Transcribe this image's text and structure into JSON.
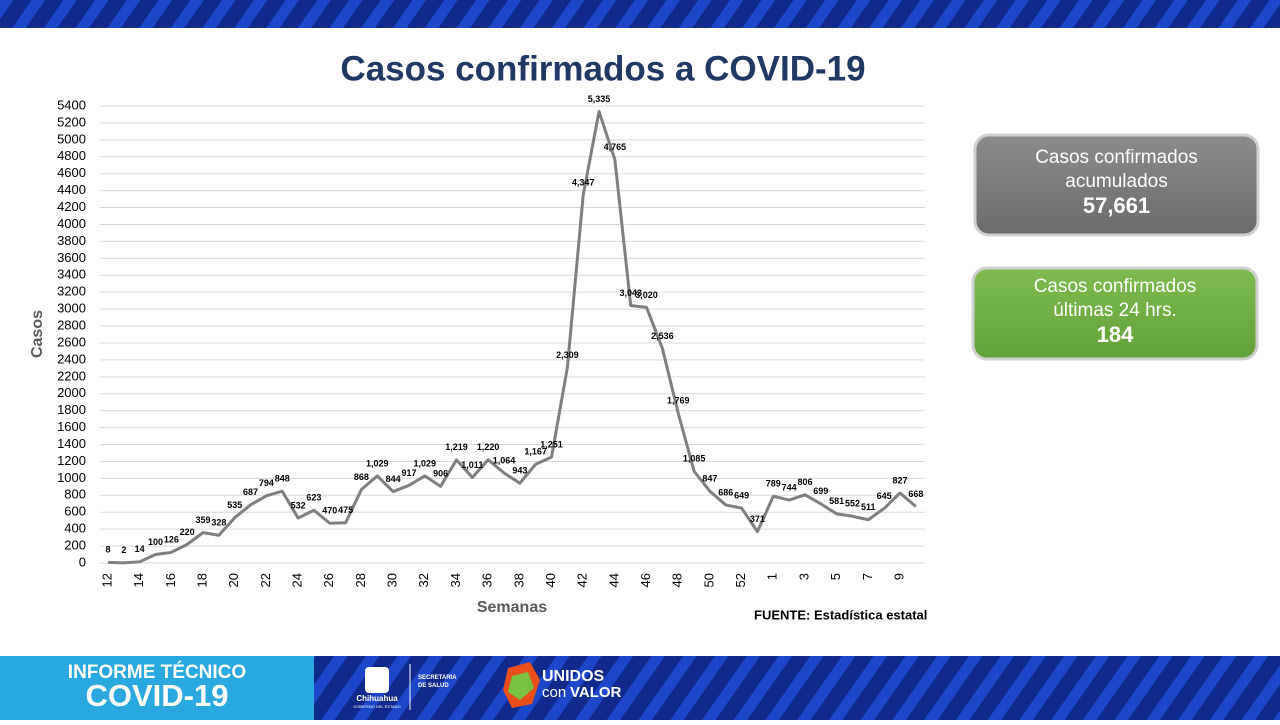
{
  "chart_data": {
    "type": "line",
    "title": "Casos confirmados a COVID-19",
    "x_label": "Semanas",
    "y_label": "Casos",
    "source": "FUENTE: Estadística estatal",
    "categories": [
      "12",
      null,
      "14",
      null,
      "16",
      null,
      "18",
      null,
      "20",
      null,
      "22",
      null,
      "24",
      null,
      "26",
      null,
      "28",
      null,
      "30",
      null,
      "32",
      null,
      "34",
      null,
      "36",
      null,
      "38",
      null,
      "40",
      null,
      "42",
      null,
      "44",
      null,
      "46",
      null,
      "48",
      null,
      "50",
      null,
      "52",
      null,
      "1",
      null,
      "3",
      null,
      "5",
      null,
      "7",
      null,
      "9",
      null
    ],
    "values": [
      8,
      2,
      14,
      100,
      126,
      220,
      359,
      328,
      535,
      687,
      794,
      848,
      532,
      623,
      470,
      475,
      868,
      1029,
      844,
      917,
      1029,
      906,
      1219,
      1011,
      1220,
      1064,
      943,
      1167,
      1251,
      2309,
      4347,
      5335,
      4765,
      3043,
      3020,
      2536,
      1769,
      1085,
      847,
      686,
      649,
      371,
      789,
      744,
      806,
      699,
      581,
      552,
      511,
      645,
      827,
      668
    ],
    "value_labels": [
      "8",
      "2",
      "14",
      "100",
      "126",
      "220",
      "359",
      "328",
      "535",
      "687",
      "794",
      "848",
      "532",
      "623",
      "470",
      "475",
      "868",
      "1,029",
      "844",
      "917",
      "1,029",
      "906",
      "1,219",
      "1,011",
      "1,220",
      "1,064",
      "943",
      "1,167",
      "1,251",
      "2,309",
      "4,347",
      "5,335",
      "4,765",
      "3,043",
      "3,020",
      "2,536",
      "1,769",
      "1,085",
      "847",
      "686",
      "649",
      "371",
      "789",
      "744",
      "806",
      "699",
      "581",
      "552",
      "511",
      "645",
      "827",
      "668"
    ],
    "color": "#7f7f7f",
    "ylim": [
      0,
      5400
    ],
    "yticks": [
      0,
      200,
      400,
      600,
      800,
      1000,
      1200,
      1400,
      1600,
      1800,
      2000,
      2200,
      2400,
      2600,
      2800,
      3000,
      3200,
      3400,
      3600,
      3800,
      4000,
      4200,
      4400,
      4600,
      4800,
      5000,
      5200,
      5400
    ],
    "grid": true
  },
  "panels": [
    {
      "title": "Casos confirmados acumulados",
      "value": "57,661"
    },
    {
      "title": "Casos confirmados últimas 24 hrs.",
      "value": "184"
    }
  ],
  "footer": {
    "report": "INFORME TÉCNICO",
    "topic": "COVID-19",
    "state": "Chihuahua",
    "government": "GOBIERNO DEL ESTADO",
    "secretariat": "SECRETARÍA DE SALUD",
    "slogan_1": "UNIDOS",
    "slogan_2": "con",
    "slogan_3": "VALOR"
  }
}
